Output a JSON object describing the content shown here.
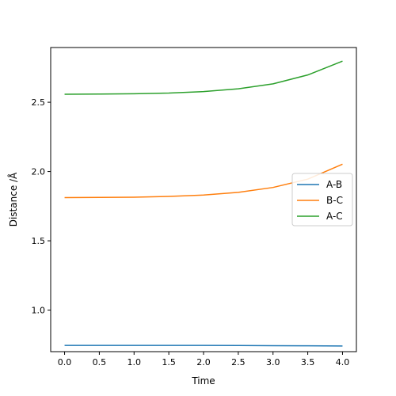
{
  "chart_data": {
    "type": "line",
    "title": "",
    "xlabel": "Time",
    "ylabel": "Distance /Å",
    "xlim": [
      -0.2,
      4.2
    ],
    "ylim": [
      0.7,
      2.895
    ],
    "xticks": [
      0.0,
      0.5,
      1.0,
      1.5,
      2.0,
      2.5,
      3.0,
      3.5,
      4.0
    ],
    "xtick_labels": [
      "0.0",
      "0.5",
      "1.0",
      "1.5",
      "2.0",
      "2.5",
      "3.0",
      "3.5",
      "4.0"
    ],
    "yticks": [
      1.0,
      1.5,
      2.0,
      2.5
    ],
    "ytick_labels": [
      "1.0",
      "1.5",
      "2.0",
      "2.5"
    ],
    "grid": false,
    "legend_position": "right",
    "x": [
      0.0,
      0.5,
      1.0,
      1.5,
      2.0,
      2.5,
      3.0,
      3.5,
      4.0
    ],
    "series": [
      {
        "name": "A-B",
        "color": "#1f77b4",
        "values": [
          0.745,
          0.745,
          0.745,
          0.745,
          0.745,
          0.744,
          0.743,
          0.742,
          0.741
        ]
      },
      {
        "name": "B-C",
        "color": "#ff7f0e",
        "values": [
          1.812,
          1.813,
          1.815,
          1.82,
          1.83,
          1.85,
          1.885,
          1.945,
          2.053
        ]
      },
      {
        "name": "A-C",
        "color": "#2ca02c",
        "values": [
          2.558,
          2.559,
          2.561,
          2.566,
          2.577,
          2.597,
          2.633,
          2.697,
          2.797
        ]
      }
    ]
  }
}
